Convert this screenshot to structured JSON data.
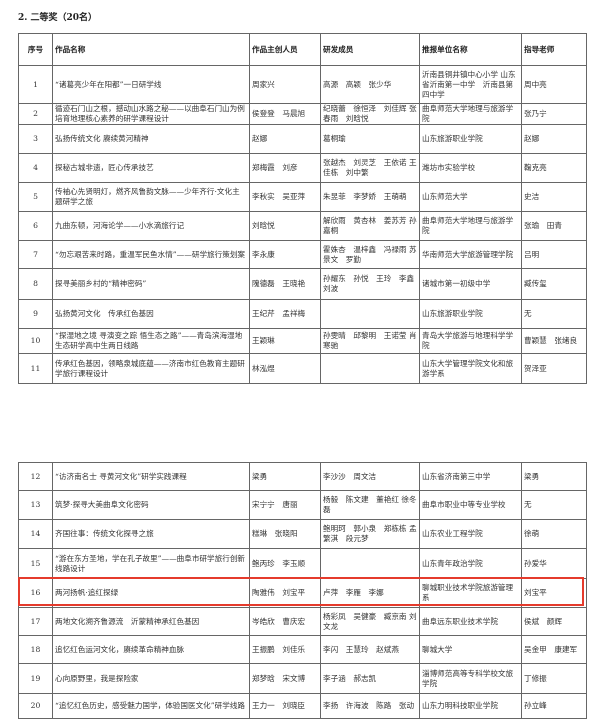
{
  "section_title": "2. 二等奖（20名）",
  "headers": [
    "序号",
    "作品名称",
    "作品主创人员",
    "研发成员",
    "推报单位名称",
    "指导老师"
  ],
  "highlight_color": "#e53b2c",
  "highlighted_row": "16",
  "rows": [
    [
      "1",
      "“诸葛亮少年在阳都”一日研学线",
      "周家兴",
      "高源　高颖　张少华",
      "沂南县铜井镇中心小学 山东省沂南第一中学　沂南县第四中学",
      "周中亮"
    ],
    [
      "2",
      "循迹石门山之根，撼动山水路之秘——以曲阜石门山为例培育地理核心素养的研学课程设计",
      "侯登登　马晨旭",
      "纪晓蕾　徐恒泽　刘佳辉 张春雨　刘晗悦",
      "曲阜师范大学地理与旅游学院",
      "张乃宁"
    ],
    [
      "3",
      "弘扬传统文化 赓续黄河精神",
      "赵娜",
      "葛桐瑜",
      "山东旅游职业学院",
      "赵娜"
    ],
    [
      "4",
      "探秘古城非遗，匠心传承技艺",
      "郑梅霞　刘彦",
      "张越杰　刘灵芝　王依诺 王佳栋　刘中繁",
      "潍坊市实验学校",
      "鞠克亮"
    ],
    [
      "5",
      "传袖心先贤明灯，燃齐风鲁韵文脉——少年齐行·文化主题研学之旅",
      "李秋实　吴亚萍",
      "朱昱菲　李梦娇　王萌萌",
      "山东师范大学",
      "史洁"
    ],
    [
      "6",
      "九曲东顿，河海论学——小水滴旅行记",
      "刘晗悦",
      "解欣雨　黄杏林　姜苏芳 孙嘉桐",
      "曲阜师范大学地理与旅游学院",
      "张瑜　田青"
    ],
    [
      "7",
      "“勿忘艰苦来时路，重温军民鱼水情”——研学旅行策划案",
      "李永康",
      "霍姝杏　温梓鑫　冯禄雨 苏景文　罗勤",
      "华南师范大学旅游管理学院",
      "吕明"
    ],
    [
      "8",
      "探寻美丽乡村的“精神密码”",
      "隗德磊　王晓艳",
      "孙耀东　孙悦　王玲　李鑫　刘波",
      "诸城市第一初级中学",
      "臧传玺"
    ],
    [
      "9",
      "弘扬黄河文化　传承红色基因",
      "王纪芹　孟祥梅",
      "",
      "山东旅游职业学院",
      "无"
    ],
    [
      "10",
      "“探湿地之境 寻演变之踪 悟生态之路”——青岛滨海湿地生态研学高中生两日线路",
      "王颖琳",
      "孙雯晴　邱黎明　王诺莹 肖寒驰",
      "青岛大学旅游与地理科学学院",
      "曹颖慧　张绪良"
    ],
    [
      "11",
      "传承红色基因，领略泉城底蕴——济南市红色教育主题研学旅行课程设计",
      "林泓煜",
      "",
      "山东大学管理学院文化和旅游学系",
      "贺泽亚"
    ],
    [
      "12",
      "“访济南名士 寻黄河文化”研学实践课程",
      "梁勇",
      "李沙沙　周文洁",
      "山东省济南第三中学",
      "梁勇"
    ],
    [
      "13",
      "筑梦·探寻大美曲阜文化密码",
      "宋宁宁　唐丽",
      "杨毅　陈文建　董艳红 徐冬磊",
      "曲阜市职业中等专业学校",
      "无"
    ],
    [
      "14",
      "齐国往事：传统文化探寻之旅",
      "糕琳　张晓阳",
      "鲍明珂　郭小泉　郑栋栋 孟繁淇　段元梦",
      "山东农业工程学院",
      "徐萌"
    ],
    [
      "15",
      "“游在东方圣地，学在孔子故里”——曲阜市研学旅行创新线路设计",
      "鲍丙珍　李玉顺",
      "",
      "山东青年政治学院",
      "孙爱华"
    ],
    [
      "16",
      "两河扬帆·追红探绿",
      "陶雅伟　刘宝平",
      "卢萍　李雁　李娜",
      "聊城职业技术学院旅游管理系",
      "刘宝平"
    ],
    [
      "17",
      "两地文化溯齐鲁源流　沂蒙精神承红色基因",
      "岑皓欣　曹庆宏",
      "杨彩凤　吴健豪　臧京南 刘文龙",
      "曲阜远东职业技术学院",
      "侯斌　颜辉"
    ],
    [
      "18",
      "追忆红色运河文化，赓续革命精神血脉",
      "王振鹏　刘佳乐",
      "李闪　王慧玲　赵斌燕",
      "聊城大学",
      "吴金甲　康建军"
    ],
    [
      "19",
      "心向原野里，我是探险家",
      "郑梦晗　宋文博",
      "李子涵　郝志凯",
      "淄博师范高等专科学校文旅学院",
      "丁修振"
    ],
    [
      "20",
      "“追忆红色历史，感受魅力国学，体验国医文化”研学线路",
      "王力一　刘晓臣",
      "李扬　许海波　陈路　张动",
      "山东力明科技职业学院",
      "孙立峰"
    ]
  ]
}
